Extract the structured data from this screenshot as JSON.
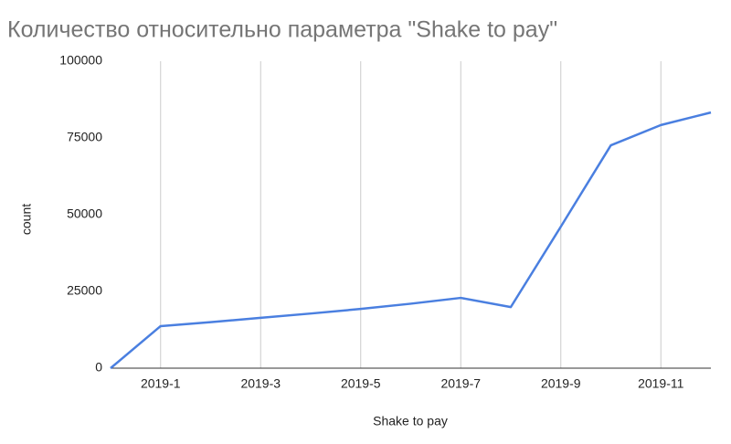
{
  "chart_data": {
    "type": "line",
    "title": "Количество относительно параметра \"Shake to pay\"",
    "x_label": "Shake to pay",
    "y_label": "count",
    "categories": [
      null,
      "2019-1",
      null,
      "2019-3",
      null,
      "2019-5",
      null,
      "2019-7",
      null,
      "2019-9",
      null,
      "2019-11",
      null
    ],
    "values": [
      0,
      13700,
      15000,
      16400,
      17800,
      19300,
      21000,
      22900,
      19900,
      46100,
      72600,
      79200,
      83300
    ],
    "color": "#4a7fe0",
    "ylim": [
      0,
      100000
    ],
    "yticks": [
      0,
      25000,
      50000,
      75000,
      100000
    ],
    "grid": true
  }
}
